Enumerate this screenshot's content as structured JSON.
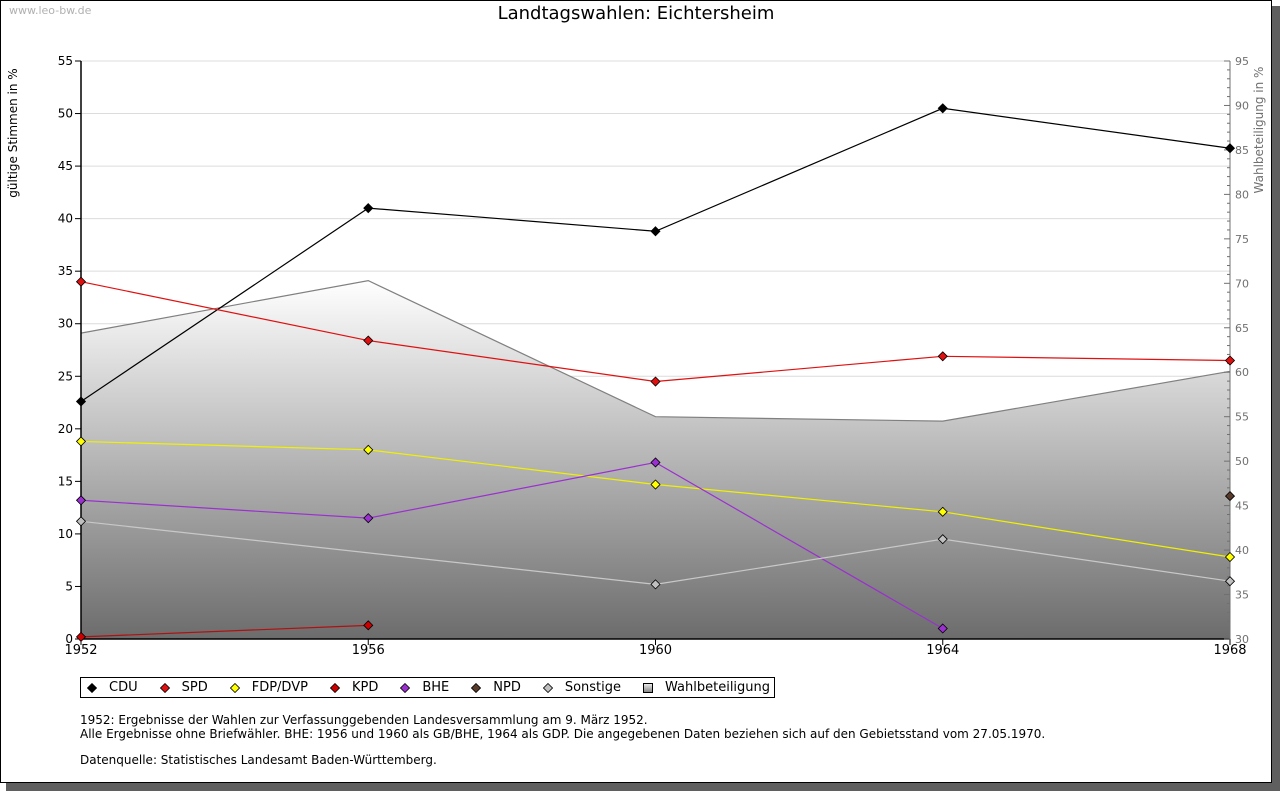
{
  "watermark": "www.leo-bw.de",
  "chart_data": {
    "type": "line",
    "title": "Landtagswahlen: Eichtersheim",
    "xlabel": "",
    "ylabel": "gültige Stimmen in %",
    "y2label": "Wahlbeteiligung in %",
    "x": [
      1952,
      1956,
      1960,
      1964,
      1968
    ],
    "x_tick_labels": [
      "1952",
      "1956",
      "1960",
      "1964",
      "1968"
    ],
    "ylim": [
      0,
      55
    ],
    "y_ticks": [
      0,
      5,
      10,
      15,
      20,
      25,
      30,
      35,
      40,
      45,
      50,
      55
    ],
    "y2lim": [
      30,
      95
    ],
    "y2_ticks": [
      30,
      35,
      40,
      45,
      50,
      55,
      60,
      65,
      70,
      75,
      80,
      85,
      90,
      95
    ],
    "grid": true,
    "legend_position": "bottom-left",
    "series": [
      {
        "name": "CDU",
        "color": "#000000",
        "marker_fill": "#000000",
        "axis": "left",
        "values": [
          22.6,
          41.0,
          38.8,
          50.5,
          46.7
        ]
      },
      {
        "name": "SPD",
        "color": "#e01010",
        "marker_fill": "#e01010",
        "axis": "left",
        "values": [
          34.0,
          28.4,
          24.5,
          26.9,
          26.5
        ]
      },
      {
        "name": "FDP/DVP",
        "color": "#f0f000",
        "marker_fill": "#ffff00",
        "axis": "left",
        "values": [
          18.8,
          18.0,
          14.7,
          12.1,
          7.8
        ]
      },
      {
        "name": "KPD",
        "color": "#b01010",
        "marker_fill": "#cc0000",
        "axis": "left",
        "values": [
          0.2,
          1.3,
          null,
          null,
          null
        ]
      },
      {
        "name": "BHE",
        "color": "#9b30d0",
        "marker_fill": "#9b30d0",
        "axis": "left",
        "values": [
          13.2,
          11.5,
          16.8,
          1.0,
          null
        ]
      },
      {
        "name": "NPD",
        "color": "#5a3a2a",
        "marker_fill": "#5a3a2a",
        "axis": "left",
        "values": [
          null,
          null,
          null,
          null,
          13.6
        ]
      },
      {
        "name": "Sonstige",
        "color": "#c8c8c8",
        "marker_fill": "#c0c0c0",
        "axis": "left",
        "values": [
          11.2,
          null,
          5.2,
          9.5,
          5.5
        ],
        "connect_gaps": true
      }
    ],
    "area_series": {
      "name": "Wahlbeteiligung",
      "axis": "right",
      "values": [
        64.4,
        70.3,
        55.0,
        54.5,
        60.1
      ],
      "line_color": "#808080"
    }
  },
  "legend": [
    {
      "label": "CDU",
      "color": "#000000",
      "shape": "diamond"
    },
    {
      "label": "SPD",
      "color": "#e01010",
      "shape": "diamond"
    },
    {
      "label": "FDP/DVP",
      "color": "#ffff00",
      "shape": "diamond"
    },
    {
      "label": "KPD",
      "color": "#cc0000",
      "shape": "diamond"
    },
    {
      "label": "BHE",
      "color": "#9b30d0",
      "shape": "diamond"
    },
    {
      "label": "NPD",
      "color": "#5a3a2a",
      "shape": "diamond"
    },
    {
      "label": "Sonstige",
      "color": "#c0c0c0",
      "shape": "diamond"
    },
    {
      "label": "Wahlbeteiligung",
      "color": "#b0b0b0",
      "shape": "square"
    }
  ],
  "notes": {
    "line1": "1952: Ergebnisse der Wahlen zur Verfassunggebenden Landesversammlung am 9. März 1952.",
    "line2": "Alle Ergebnisse ohne Briefwähler. BHE: 1956 und 1960 als GB/BHE, 1964 als GDP. Die angegebenen Daten beziehen sich auf den Gebietsstand vom 27.05.1970.",
    "source": "Datenquelle: Statistisches Landesamt Baden-Württemberg."
  }
}
